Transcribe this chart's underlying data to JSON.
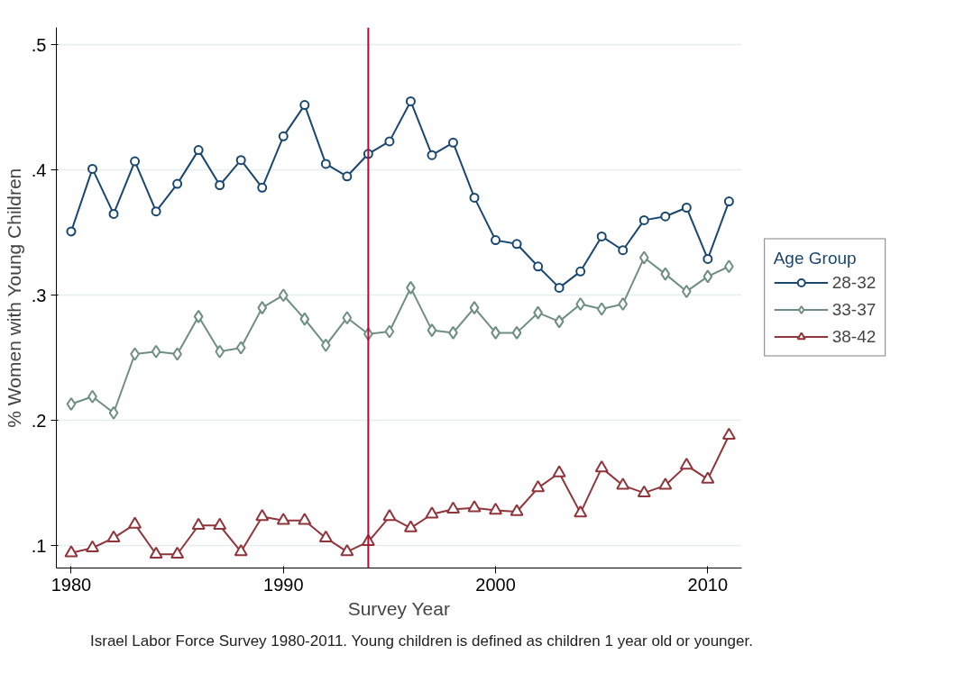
{
  "chart_data": {
    "type": "line",
    "xlabel": "Survey Year",
    "ylabel": "% Women with Young Children",
    "legend_title": "Age Group",
    "legend": "right",
    "grid": "y",
    "x": [
      1980,
      1981,
      1982,
      1983,
      1984,
      1985,
      1986,
      1987,
      1988,
      1989,
      1990,
      1991,
      1992,
      1993,
      1994,
      1995,
      1996,
      1997,
      1998,
      1999,
      2000,
      2001,
      2002,
      2003,
      2004,
      2005,
      2006,
      2007,
      2008,
      2009,
      2010,
      2011
    ],
    "xlim": [
      1979.3,
      2011.6
    ],
    "xticks": [
      1980,
      1990,
      2000,
      2010
    ],
    "ylim": [
      0.082,
      0.514
    ],
    "yticks": [
      {
        "value": 0.1,
        "label": ".1"
      },
      {
        "value": 0.2,
        "label": ".2"
      },
      {
        "value": 0.3,
        "label": ".3"
      },
      {
        "value": 0.4,
        "label": ".4"
      },
      {
        "value": 0.5,
        "label": ".5"
      }
    ],
    "series": [
      {
        "name": "28-32",
        "color": "#1a476f",
        "marker": "circle",
        "values": [
          0.351,
          0.401,
          0.365,
          0.407,
          0.367,
          0.389,
          0.416,
          0.388,
          0.408,
          0.386,
          0.427,
          0.452,
          0.405,
          0.395,
          0.413,
          0.423,
          0.455,
          0.412,
          0.422,
          0.378,
          0.344,
          0.341,
          0.323,
          0.306,
          0.319,
          0.347,
          0.336,
          0.36,
          0.363,
          0.37,
          0.329,
          0.375
        ]
      },
      {
        "name": "33-37",
        "color": "#6e8e84",
        "marker": "diamond",
        "values": [
          0.213,
          0.219,
          0.206,
          0.253,
          0.255,
          0.253,
          0.283,
          0.255,
          0.258,
          0.29,
          0.3,
          0.281,
          0.26,
          0.282,
          0.269,
          0.271,
          0.306,
          0.272,
          0.27,
          0.29,
          0.27,
          0.27,
          0.286,
          0.279,
          0.293,
          0.289,
          0.293,
          0.33,
          0.317,
          0.303,
          0.315,
          0.323
        ]
      },
      {
        "name": "38-42",
        "color": "#90353b",
        "marker": "triangle",
        "values": [
          0.094,
          0.098,
          0.106,
          0.117,
          0.093,
          0.093,
          0.116,
          0.116,
          0.095,
          0.123,
          0.12,
          0.12,
          0.106,
          0.095,
          0.103,
          0.123,
          0.114,
          0.125,
          0.129,
          0.13,
          0.128,
          0.127,
          0.146,
          0.158,
          0.126,
          0.162,
          0.148,
          0.142,
          0.148,
          0.164,
          0.153,
          0.188
        ]
      }
    ],
    "ref_lines": [
      {
        "axis": "x",
        "value": 1994,
        "color": "#c10534"
      }
    ],
    "annotations": [
      "Israel Labor Force Survey 1980-2011. Young children is defined as children 1 year old or younger."
    ]
  }
}
